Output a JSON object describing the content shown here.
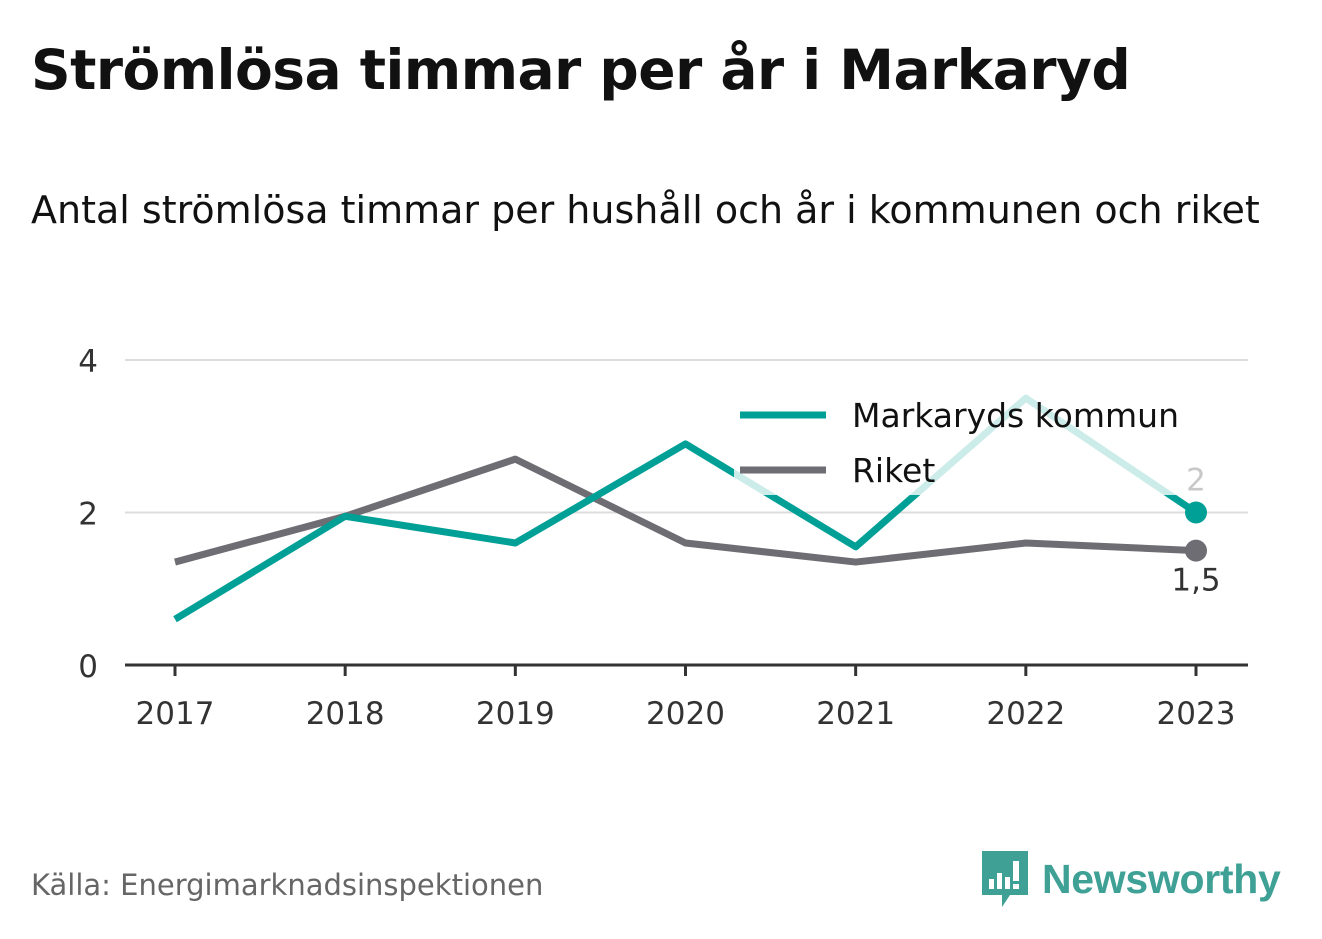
{
  "header": {
    "title": "Strömlösa timmar per år i Markaryd",
    "subtitle": "Antal strömlösa timmar per hushåll och år i kommunen och riket"
  },
  "footer": {
    "source": "Källa: Energimarknadsinspektionen",
    "brand": "Newsworthy",
    "brand_icon": "bar-chart-logo-icon",
    "brand_color": "#3fa096"
  },
  "chart_data": {
    "type": "line",
    "x": [
      "2017",
      "2018",
      "2019",
      "2020",
      "2021",
      "2022",
      "2023"
    ],
    "ylim": [
      0,
      4
    ],
    "yticks": [
      0,
      2,
      4
    ],
    "grid": true,
    "legend": "top-right",
    "series": [
      {
        "name": "Markaryds kommun",
        "color": "#00a096",
        "values": [
          0.6,
          1.95,
          1.6,
          2.9,
          1.55,
          3.5,
          2.0
        ],
        "end_label": "2"
      },
      {
        "name": "Riket",
        "color": "#6e6d73",
        "values": [
          1.35,
          1.95,
          2.7,
          1.6,
          1.35,
          1.6,
          1.5
        ],
        "end_label": "1,5"
      }
    ]
  }
}
